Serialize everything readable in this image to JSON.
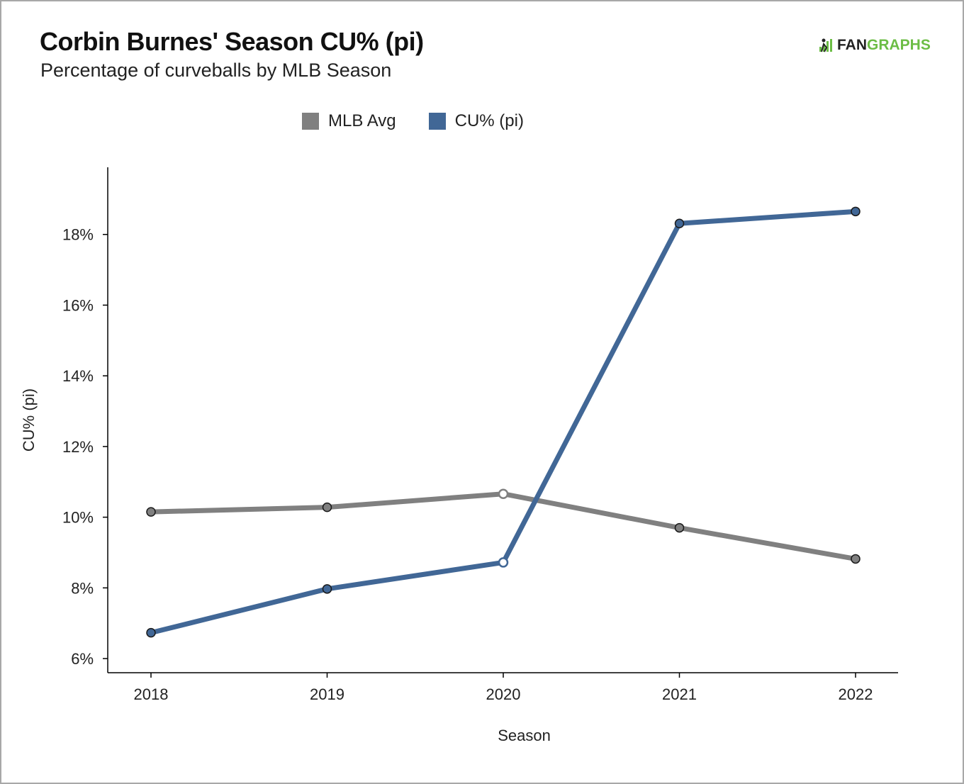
{
  "header": {
    "title": "Corbin Burnes' Season CU% (pi)",
    "subtitle": "Percentage of curveballs by MLB Season"
  },
  "logo": {
    "fan": "FAN",
    "graphs": "GRAPHS",
    "icon": "fangraphs-logo-icon"
  },
  "colors": {
    "mlb_avg": "#808080",
    "cu_pct": "#416796",
    "brand_green": "#6cbd45",
    "marker_stroke": "#1a1a1a",
    "open_marker_fill": "#ffffff"
  },
  "chart_data": {
    "type": "line",
    "x": [
      "2018",
      "2019",
      "2020",
      "2021",
      "2022"
    ],
    "xlabel": "Season",
    "ylabel": "CU% (pi)",
    "ylim": [
      5.6,
      19.9
    ],
    "yticks": [
      6,
      8,
      10,
      12,
      14,
      16,
      18
    ],
    "ytick_labels": [
      "6%",
      "8%",
      "10%",
      "12%",
      "14%",
      "16%",
      "18%"
    ],
    "grid": false,
    "legend_position": "top-center",
    "series": [
      {
        "name": "MLB Avg",
        "color": "#808080",
        "values": [
          10.15,
          10.28,
          10.66,
          9.7,
          8.82
        ],
        "open_markers": [
          2
        ]
      },
      {
        "name": "CU% (pi)",
        "color": "#416796",
        "values": [
          6.73,
          7.97,
          8.72,
          18.31,
          18.65
        ],
        "open_markers": [
          2
        ]
      }
    ]
  }
}
